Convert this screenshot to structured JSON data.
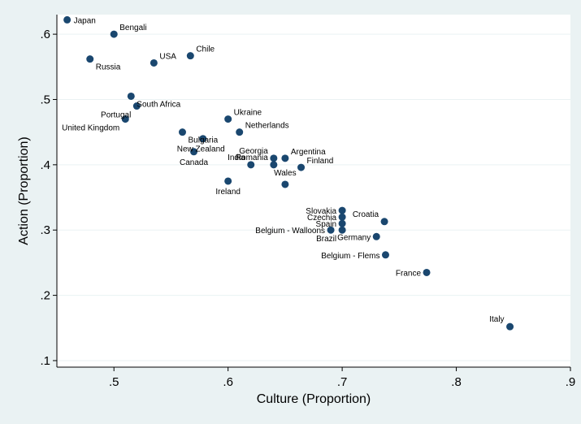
{
  "chart_data": {
    "type": "scatter",
    "title": "",
    "xlabel": "Culture (Proportion)",
    "ylabel": "Action (Proportion)",
    "xlim": [
      0.45,
      0.9
    ],
    "ylim": [
      0.09,
      0.63
    ],
    "xticks": [
      0.5,
      0.6,
      0.7,
      0.8,
      0.9
    ],
    "xtick_labels": [
      ".5",
      ".6",
      ".7",
      ".8",
      ".9"
    ],
    "yticks": [
      0.1,
      0.2,
      0.3,
      0.4,
      0.5,
      0.6
    ],
    "ytick_labels": [
      ".1",
      ".2",
      ".3",
      ".4",
      ".5",
      ".6"
    ],
    "grid": "horizontal",
    "marker_color": "#1a476f",
    "background_color": "#eaf2f3",
    "plot_background": "#ffffff",
    "points": [
      {
        "label": "Japan",
        "x": 0.459,
        "y": 0.622,
        "pos": "right"
      },
      {
        "label": "Bengali",
        "x": 0.5,
        "y": 0.6,
        "pos": "upper-right"
      },
      {
        "label": "Russia",
        "x": 0.479,
        "y": 0.562,
        "pos": "lower-right"
      },
      {
        "label": "USA",
        "x": 0.535,
        "y": 0.556,
        "pos": "upper-right"
      },
      {
        "label": "Chile",
        "x": 0.567,
        "y": 0.567,
        "pos": "upper-right"
      },
      {
        "label": "South Africa",
        "x": 0.515,
        "y": 0.505,
        "pos": "lower-right"
      },
      {
        "label": "Portugal",
        "x": 0.52,
        "y": 0.49,
        "pos": "lower-left"
      },
      {
        "label": "United Kingdom",
        "x": 0.51,
        "y": 0.47,
        "pos": "lower-left"
      },
      {
        "label": "Ukraine",
        "x": 0.6,
        "y": 0.47,
        "pos": "upper-right"
      },
      {
        "label": "Netherlands",
        "x": 0.61,
        "y": 0.45,
        "pos": "upper-right"
      },
      {
        "label": "Bulgaria",
        "x": 0.56,
        "y": 0.45,
        "pos": "lower-right"
      },
      {
        "label": "New Zealand",
        "x": 0.578,
        "y": 0.44,
        "pos": "lower-right-b"
      },
      {
        "label": "Canada",
        "x": 0.57,
        "y": 0.42,
        "pos": "lower-center"
      },
      {
        "label": "Georgia",
        "x": 0.64,
        "y": 0.41,
        "pos": "upper-left"
      },
      {
        "label": "Argentina",
        "x": 0.65,
        "y": 0.41,
        "pos": "upper-right"
      },
      {
        "label": "Romania",
        "x": 0.64,
        "y": 0.4,
        "pos": "upper-left"
      },
      {
        "label": "Finland",
        "x": 0.664,
        "y": 0.396,
        "pos": "upper-right"
      },
      {
        "label": "India",
        "x": 0.62,
        "y": 0.4,
        "pos": "upper-left"
      },
      {
        "label": "Wales",
        "x": 0.65,
        "y": 0.37,
        "pos": "upper-center"
      },
      {
        "label": "Ireland",
        "x": 0.6,
        "y": 0.375,
        "pos": "lower-center"
      },
      {
        "label": "Slovakia",
        "x": 0.7,
        "y": 0.33,
        "pos": "left"
      },
      {
        "label": "Czechia",
        "x": 0.7,
        "y": 0.32,
        "pos": "left"
      },
      {
        "label": "Spain",
        "x": 0.7,
        "y": 0.31,
        "pos": "left"
      },
      {
        "label": "Belgium - Walloons",
        "x": 0.69,
        "y": 0.3,
        "pos": "left"
      },
      {
        "label": "Croatia",
        "x": 0.737,
        "y": 0.313,
        "pos": "upper-left"
      },
      {
        "label": "Brazil",
        "x": 0.7,
        "y": 0.3,
        "pos": "lower-left"
      },
      {
        "label": "Germany",
        "x": 0.73,
        "y": 0.29,
        "pos": "left"
      },
      {
        "label": "Belgium - Flems",
        "x": 0.738,
        "y": 0.262,
        "pos": "left"
      },
      {
        "label": "France",
        "x": 0.774,
        "y": 0.235,
        "pos": "left"
      },
      {
        "label": "Italy",
        "x": 0.847,
        "y": 0.152,
        "pos": "upper-left"
      }
    ]
  }
}
